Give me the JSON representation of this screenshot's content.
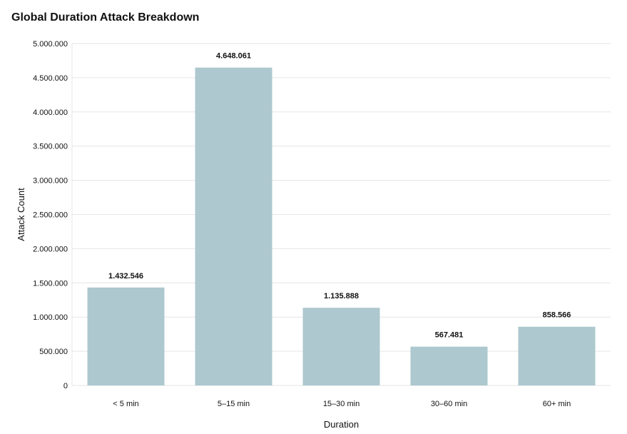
{
  "chart_data": {
    "type": "bar",
    "title": "Global Duration Attack Breakdown",
    "xlabel": "Duration",
    "ylabel": "Attack Count",
    "categories": [
      "< 5 min",
      "5–15 min",
      "15–30 min",
      "30–60 min",
      "60+ min"
    ],
    "values": [
      1432546,
      4648061,
      1135888,
      567481,
      858566
    ],
    "value_labels": [
      "1.432.546",
      "4.648.061",
      "1.135.888",
      "567.481",
      "858.566"
    ],
    "ylim": [
      0,
      5000000
    ],
    "yticks": [
      0,
      500000,
      1000000,
      1500000,
      2000000,
      2500000,
      3000000,
      3500000,
      4000000,
      4500000,
      5000000
    ],
    "ytick_labels": [
      "0",
      "500.000",
      "1.000.000",
      "1.500.000",
      "2.000.000",
      "2.500.000",
      "3.000.000",
      "3.500.000",
      "4.000.000",
      "4.500.000",
      "5.000.000"
    ],
    "grid": true,
    "bar_color": "#adc8ce",
    "grid_color": "#e6e6e6"
  }
}
